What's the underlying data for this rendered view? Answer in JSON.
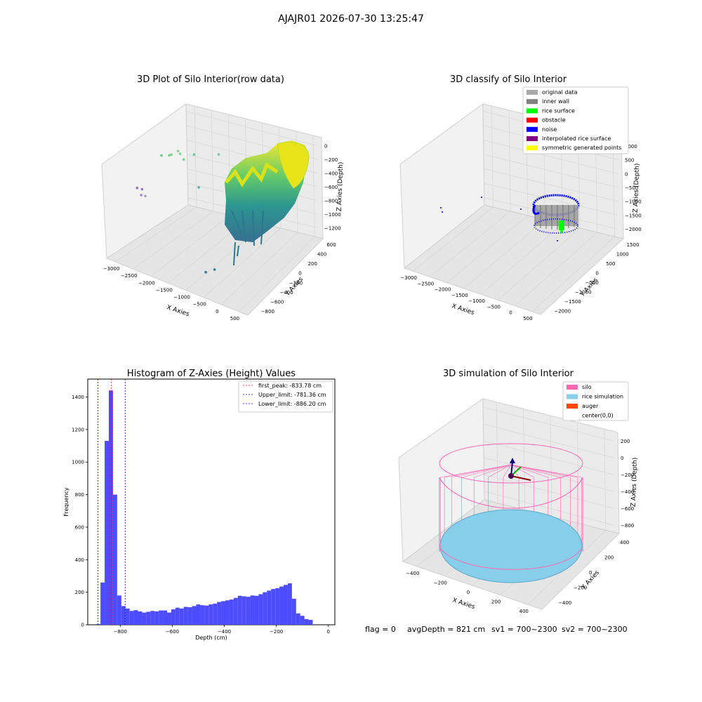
{
  "figure": {
    "suptitle": "AJAJR01 2026-07-30 13:25:47",
    "footer": {
      "flag": "flag = 0",
      "avg_depth": "avgDepth = 821 cm",
      "sv1": "sv1 = 700~2300",
      "sv2": "sv2 = 700~2300"
    }
  },
  "colors": {
    "hist_bar": "#4d4dff",
    "first_peak_line": "#ff0000",
    "limit_line": "#0000cc",
    "pane": "#f2f2f2",
    "grid": "#cccccc",
    "silo": "#ff69b4",
    "rice_sim": "#87ceeb",
    "auger": "#ff4500",
    "original_data": "#aaaaaa",
    "inner_wall": "#808080",
    "rice_surface": "#00ff00",
    "obstacle": "#ff0000",
    "noise": "#0000ff",
    "interpolated": "#800080",
    "symmetric": "#ffff00"
  },
  "chart_data": [
    {
      "type": "scatter",
      "projection": "3d",
      "title": "3D Plot of Silo Interior(row data)",
      "xlabel": "X Axies",
      "ylabel": "Y Axies",
      "zlabel": "Z Axies (Depth)",
      "xticks": [
        "−3000",
        "−2500",
        "−2000",
        "−1500",
        "−1000",
        "−500",
        "0",
        "500"
      ],
      "yticks": [
        "−800",
        "−600",
        "−400",
        "−200",
        "0",
        "200",
        "400",
        "600"
      ],
      "zticks": [
        "−1200",
        "−1000",
        "−800",
        "−600",
        "−400",
        "−200",
        "0"
      ],
      "xlim": [
        -3200,
        700
      ],
      "ylim": [
        -900,
        700
      ],
      "zlim": [
        -1300,
        50
      ],
      "colormap": "viridis",
      "sparse_points": [
        {
          "x": -2950,
          "y": -200,
          "z": -650
        },
        {
          "x": -2900,
          "y": -100,
          "z": -700
        },
        {
          "x": -2880,
          "y": -150,
          "z": -750
        },
        {
          "x": -2850,
          "y": -50,
          "z": -800
        },
        {
          "x": -2700,
          "y": 300,
          "z": -400
        },
        {
          "x": -2400,
          "y": 200,
          "z": -300
        },
        {
          "x": -2300,
          "y": 150,
          "z": -250
        },
        {
          "x": -2200,
          "y": 250,
          "z": -230
        },
        {
          "x": -2150,
          "y": 260,
          "z": -260
        },
        {
          "x": -2000,
          "y": 200,
          "z": -280
        },
        {
          "x": -1800,
          "y": 300,
          "z": -220
        },
        {
          "x": -1500,
          "y": 100,
          "z": -500
        },
        {
          "x": -1200,
          "y": 400,
          "z": -150
        },
        {
          "x": -800,
          "y": -500,
          "z": -1200
        },
        {
          "x": -600,
          "y": -450,
          "z": -1150
        }
      ]
    },
    {
      "type": "scatter",
      "projection": "3d",
      "title": "3D classify of Silo Interior",
      "xlabel": "X Axies",
      "ylabel": "Y Axies",
      "zlabel": "Z Axies (Depth)",
      "xticks": [
        "−3000",
        "−2500",
        "−2000",
        "−1500",
        "−1000",
        "−500",
        "0",
        "500"
      ],
      "yticks": [
        "−2000",
        "−1500",
        "−1000",
        "−500",
        "0",
        "500",
        "1000",
        "1500"
      ],
      "zticks": [
        "−2000",
        "−1500",
        "−1000",
        "−500",
        "0",
        "500",
        "1000"
      ],
      "xlim": [
        -3200,
        700
      ],
      "ylim": [
        -2100,
        1700
      ],
      "zlim": [
        -2200,
        1100
      ],
      "legend": {
        "loc": "upper right",
        "entries": [
          {
            "label": "original data",
            "color": "#aaaaaa"
          },
          {
            "label": "inner wall",
            "color": "#808080"
          },
          {
            "label": "rice surface",
            "color": "#00ff00"
          },
          {
            "label": "obstacle",
            "color": "#ff0000"
          },
          {
            "label": "noise",
            "color": "#0000ff"
          },
          {
            "label": "interpolated rice surface",
            "color": "#800080"
          },
          {
            "label": "symmetric generated points",
            "color": "#ffff00"
          }
        ]
      }
    },
    {
      "type": "bar",
      "subtype": "histogram",
      "title": "Histogram of Z-Axies (Height) Values",
      "xlabel": "Depth (cm)",
      "ylabel": "Frequency",
      "xlim": [
        -925,
        25
      ],
      "ylim": [
        0,
        1510
      ],
      "xticks": [
        -800,
        -600,
        -400,
        -200,
        0
      ],
      "yticks": [
        0,
        200,
        400,
        600,
        800,
        1000,
        1200,
        1400
      ],
      "bin_width": 16,
      "bin_start": -892,
      "values": [
        5,
        260,
        1130,
        1440,
        800,
        180,
        115,
        100,
        85,
        90,
        82,
        75,
        80,
        85,
        82,
        88,
        88,
        75,
        95,
        105,
        100,
        110,
        108,
        115,
        125,
        120,
        118,
        125,
        130,
        140,
        145,
        150,
        155,
        165,
        178,
        175,
        172,
        180,
        178,
        188,
        200,
        210,
        220,
        225,
        235,
        245,
        255,
        160,
        70,
        55,
        35,
        30
      ],
      "vlines": [
        {
          "label": "first_peak: -833.78 cm",
          "x": -833.78,
          "color": "#ff0000"
        },
        {
          "label": "Upper_limit: -781.36 cm",
          "x": -781.36,
          "color": "#0000cc"
        },
        {
          "label": "Lower_limit: -886.20 cm",
          "x": -886.2,
          "color": "#0000cc"
        }
      ],
      "legend": {
        "loc": "upper right"
      }
    },
    {
      "type": "scatter",
      "projection": "3d",
      "title": "3D simulation of Silo Interior",
      "xlabel": "X Axies",
      "ylabel": "Y Axies",
      "zlabel": "Z Axies (Depth)",
      "xticks": [
        "−400",
        "−200",
        "0",
        "200",
        "400"
      ],
      "yticks": [
        "−400",
        "−200",
        "0",
        "200",
        "400"
      ],
      "zticks": [
        "−800",
        "−600",
        "−400",
        "−200",
        "0",
        "200"
      ],
      "xlim": [
        -500,
        500
      ],
      "ylim": [
        -500,
        500
      ],
      "zlim": [
        -900,
        300
      ],
      "legend": {
        "loc": "upper right",
        "entries": [
          {
            "label": "silo",
            "color": "#ff69b4"
          },
          {
            "label": "rice simulation",
            "color": "#87ceeb"
          },
          {
            "label": "auger",
            "color": "#ff4500"
          },
          {
            "label": "center(0,0)",
            "color": "#ffffff"
          }
        ]
      }
    }
  ]
}
